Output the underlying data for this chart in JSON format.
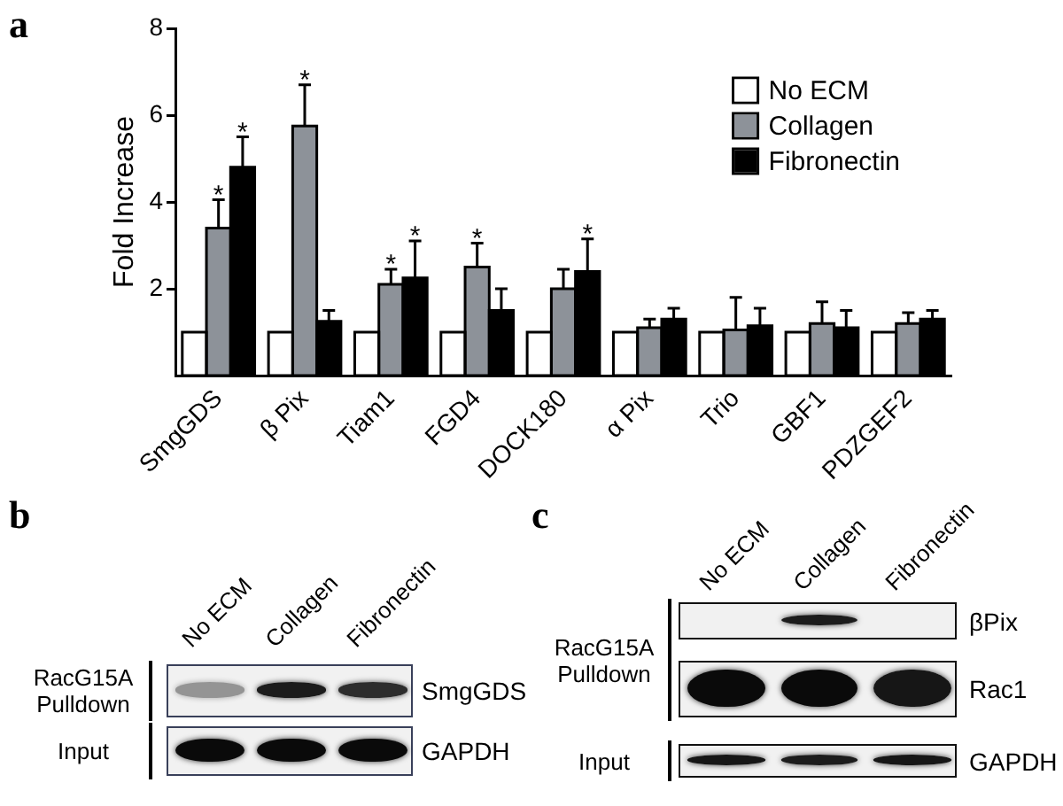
{
  "chart_data": [
    {
      "type": "bar",
      "title": "a",
      "ylabel": "Fold Increase",
      "categories": [
        "SmgGDS",
        "β Pix",
        "Tiam1",
        "FGD4",
        "DOCK180",
        "α Pix",
        "Trio",
        "GBF1",
        "PDZGEF2"
      ],
      "series": [
        {
          "name": "No ECM",
          "color": "#ffffff",
          "values": [
            1,
            1,
            1,
            1,
            1,
            1,
            1,
            1,
            1
          ]
        },
        {
          "name": "Collagen",
          "color": "#8d9299",
          "values": [
            3.4,
            5.75,
            2.1,
            2.5,
            2.0,
            1.1,
            1.05,
            1.2,
            1.2
          ],
          "errors": [
            [
              3.4,
              4.05
            ],
            [
              5.75,
              6.7
            ],
            [
              2.1,
              2.45
            ],
            [
              2.5,
              3.05
            ],
            [
              2.0,
              2.45
            ],
            [
              1.1,
              1.3
            ],
            [
              1.05,
              1.8
            ],
            [
              1.2,
              1.7
            ],
            [
              1.2,
              1.45
            ]
          ],
          "value_labels": [
            "*",
            "*",
            "*",
            "*",
            null,
            null,
            null,
            null,
            null
          ]
        },
        {
          "name": "Fibronectin",
          "color": "#000000",
          "values": [
            4.8,
            1.25,
            2.25,
            1.5,
            2.4,
            1.3,
            1.15,
            1.1,
            1.3
          ],
          "errors": [
            [
              4.8,
              5.5
            ],
            [
              1.25,
              1.5
            ],
            [
              2.25,
              3.1
            ],
            [
              1.5,
              2.0
            ],
            [
              2.4,
              3.15
            ],
            [
              1.3,
              1.55
            ],
            [
              1.15,
              1.55
            ],
            [
              1.1,
              1.5
            ],
            [
              1.3,
              1.5
            ]
          ],
          "value_labels": [
            "*",
            null,
            "*",
            null,
            "*",
            null,
            null,
            null,
            null
          ]
        }
      ],
      "ylim": [
        0,
        8
      ],
      "yticks": [
        2,
        4,
        6,
        8
      ],
      "legend": "top right"
    },
    {
      "type": "other",
      "title": "b",
      "categories": [
        "No ECM",
        "Collagen",
        "Fibronectin"
      ],
      "y_categories": [
        "RacG15A Pulldown",
        "Input"
      ],
      "y2_categories": [
        "SmgGDS",
        "GAPDH"
      ]
    },
    {
      "type": "other",
      "title": "c",
      "categories": [
        "No ECM",
        "Collagen",
        "Fibronectin"
      ],
      "y_categories": [
        "RacG15A Pulldown",
        "Input"
      ],
      "y2_categories": [
        "βPix",
        "Rac1",
        "GAPDH"
      ]
    }
  ]
}
